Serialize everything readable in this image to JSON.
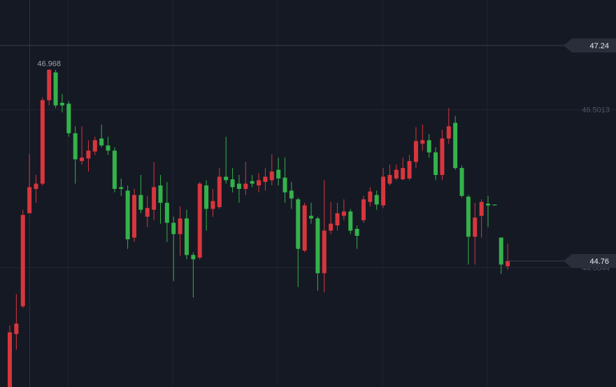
{
  "chart_data": {
    "type": "candlestick",
    "open": [
      43.31,
      43.92,
      44.24,
      45.31,
      45.59,
      45.65,
      46.61,
      46.93,
      46.58,
      46.57,
      46.23,
      45.91,
      45.94,
      46.02,
      46.17,
      46.09,
      46.03,
      45.61,
      45.57,
      45.03,
      45.52,
      45.27,
      45.35,
      45.63,
      45.43,
      45.2,
      45.07,
      45.25,
      44.83,
      44.8,
      45.63,
      45.36,
      45.38,
      45.73,
      45.7,
      45.65,
      45.59,
      45.68,
      45.63,
      45.67,
      45.69,
      45.81,
      45.72,
      45.57,
      45.47,
      44.88,
      45.28,
      45.25,
      44.62,
      45.11,
      45.17,
      45.28,
      45.33,
      45.13,
      45.23,
      45.44,
      45.52,
      45.4,
      45.65,
      45.71,
      45.7,
      45.71,
      45.9,
      46.11,
      46.15,
      46.01,
      45.75,
      46.17,
      46.35,
      45.83,
      45.5,
      45.04,
      45.28,
      45.42,
      45.41,
      45.03,
      44.7
    ],
    "high": [
      44.02,
      44.38,
      45.35,
      45.99,
      45.75,
      46.64,
      46.968,
      46.96,
      46.68,
      46.6,
      46.31,
      46.31,
      46.15,
      46.19,
      46.33,
      46.19,
      46.07,
      45.71,
      45.63,
      45.59,
      45.75,
      45.51,
      45.9,
      45.75,
      45.67,
      45.27,
      45.39,
      45.35,
      44.86,
      45.67,
      45.69,
      45.59,
      45.83,
      46.19,
      45.83,
      45.75,
      45.9,
      45.75,
      45.77,
      45.83,
      45.99,
      45.95,
      45.95,
      45.67,
      45.49,
      45.43,
      45.43,
      45.27,
      45.69,
      45.44,
      45.43,
      45.47,
      45.36,
      45.17,
      45.51,
      45.61,
      45.57,
      45.83,
      45.87,
      45.87,
      45.95,
      45.98,
      46.3,
      46.33,
      46.22,
      46.07,
      46.27,
      46.52,
      46.43,
      45.86,
      45.52,
      45.43,
      45.47,
      45.51,
      45.41,
      45.03,
      44.96
    ],
    "low": [
      43.31,
      43.74,
      44.22,
      45.31,
      45.43,
      45.63,
      46.55,
      46.52,
      46.47,
      46.19,
      45.65,
      45.87,
      45.79,
      45.98,
      46.07,
      45.98,
      45.55,
      45.51,
      44.9,
      44.98,
      45.31,
      45.15,
      45.23,
      45.19,
      44.98,
      44.53,
      44.82,
      44.78,
      44.34,
      44.78,
      45.11,
      45.27,
      45.36,
      45.65,
      45.55,
      45.43,
      45.52,
      45.61,
      45.55,
      45.57,
      45.63,
      45.63,
      45.43,
      45.36,
      44.46,
      44.86,
      45.19,
      44.42,
      44.4,
      45.07,
      45.11,
      45.23,
      45.07,
      44.9,
      45.2,
      45.39,
      45.35,
      45.37,
      45.63,
      45.69,
      45.69,
      45.69,
      45.83,
      46.03,
      45.95,
      45.69,
      45.69,
      46.11,
      45.81,
      45.49,
      44.72,
      44.72,
      45.03,
      45.15,
      45.4,
      44.61,
      44.66
    ],
    "close": [
      43.94,
      44.04,
      45.29,
      45.61,
      45.65,
      46.61,
      46.96,
      46.55,
      46.55,
      46.23,
      45.93,
      45.95,
      46.03,
      46.15,
      46.09,
      46.03,
      45.59,
      45.59,
      45.01,
      45.52,
      45.35,
      45.37,
      45.61,
      45.43,
      45.2,
      45.07,
      45.25,
      44.83,
      44.78,
      45.65,
      45.36,
      45.45,
      45.73,
      45.69,
      45.61,
      45.59,
      45.65,
      45.65,
      45.69,
      45.73,
      45.79,
      45.71,
      45.55,
      45.48,
      44.9,
      45.4,
      45.25,
      44.62,
      45.11,
      45.19,
      45.31,
      45.33,
      45.11,
      45.05,
      45.47,
      45.56,
      45.41,
      45.73,
      45.75,
      45.81,
      45.83,
      45.91,
      46.14,
      46.15,
      46.01,
      45.75,
      46.17,
      46.31,
      45.83,
      45.51,
      45.04,
      45.26,
      45.44,
      45.4,
      45.4,
      44.72,
      44.76
    ],
    "ylim": [
      43.311,
      47.763
    ],
    "yticks": [
      46.5013,
      44.6844
    ],
    "price_line": 47.24,
    "grid": true,
    "up_color": "#d7363d",
    "down_color": "#34b24a"
  }
}
